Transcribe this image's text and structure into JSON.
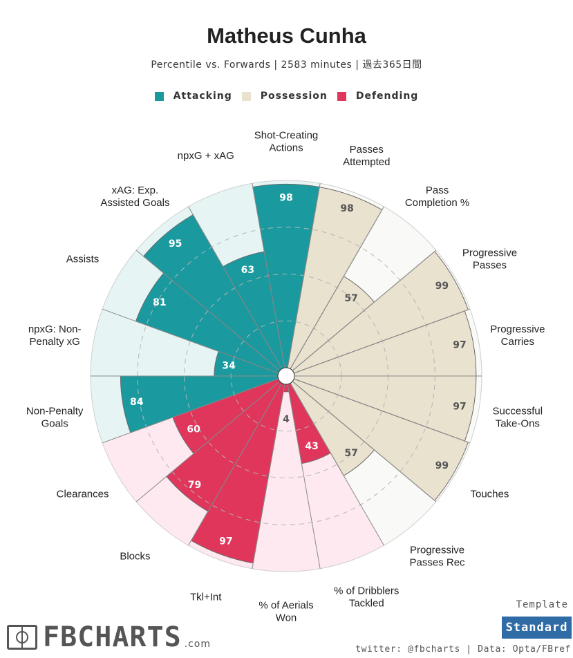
{
  "header": {
    "title": "Matheus Cunha",
    "subtitle": "Percentile vs. Forwards | 2583 minutes | 過去365日間"
  },
  "legend": [
    {
      "label": "Attacking",
      "color": "#1a9a9f"
    },
    {
      "label": "Possession",
      "color": "#e8e2cf"
    },
    {
      "label": "Defending",
      "color": "#e0365c"
    }
  ],
  "chart_data": {
    "type": "polar-bar",
    "title": "Matheus Cunha",
    "categories": [
      "Shot-Creating Actions",
      "Passes Attempted",
      "Pass Completion %",
      "Progressive Passes",
      "Progressive Carries",
      "Successful Take-Ons",
      "Touches",
      "Progressive Passes Rec",
      "% of Dribblers Tackled",
      "% of Aerials Won",
      "Tkl+Int",
      "Blocks",
      "Clearances",
      "Non-Penalty Goals",
      "npxG: Non-Penalty xG",
      "Assists",
      "xAG: Exp. Assisted Goals",
      "npxG + xAG"
    ],
    "labels": [
      [
        "Shot-Creating",
        "Actions"
      ],
      [
        "Passes",
        "Attempted"
      ],
      [
        "Pass",
        "Completion %"
      ],
      [
        "Progressive",
        "Passes"
      ],
      [
        "Progressive",
        "Carries"
      ],
      [
        "Successful",
        "Take-Ons"
      ],
      [
        "Touches"
      ],
      [
        "Progressive",
        "Passes Rec"
      ],
      [
        "% of Dribblers",
        "Tackled"
      ],
      [
        "% of Aerials",
        "Won"
      ],
      [
        "Tkl+Int"
      ],
      [
        "Blocks"
      ],
      [
        "Clearances"
      ],
      [
        "Non-Penalty",
        "Goals"
      ],
      [
        "npxG: Non-",
        "Penalty xG"
      ],
      [
        "Assists"
      ],
      [
        "xAG: Exp.",
        "Assisted Goals"
      ],
      [
        "npxG + xAG"
      ]
    ],
    "values": [
      98,
      98,
      57,
      99,
      97,
      97,
      99,
      57,
      43,
      4,
      97,
      79,
      60,
      84,
      34,
      81,
      95,
      63
    ],
    "groups": [
      "Attacking",
      "Possession",
      "Possession",
      "Possession",
      "Possession",
      "Possession",
      "Possession",
      "Possession",
      "Defending",
      "Defending",
      "Defending",
      "Defending",
      "Defending",
      "Attacking",
      "Attacking",
      "Attacking",
      "Attacking",
      "Attacking"
    ],
    "colors": {
      "Attacking": {
        "bar": "#1a9a9f",
        "bg": "#e6f4f4",
        "text": "#ffffff"
      },
      "Possession": {
        "bar": "#e8e2cf",
        "bg": "#f9f9f7",
        "text": "#555555"
      },
      "Defending": {
        "bar": "#e0365c",
        "bg": "#fde9ef",
        "text": "#ffffff"
      }
    },
    "range": [
      0,
      100
    ],
    "grid": true
  },
  "footer": {
    "logo_text": "FBCHARTS",
    "logo_suffix": ".com",
    "template_label": "Template",
    "template_value": "Standard",
    "credits": "twitter: @fbcharts | Data: Opta/FBref"
  }
}
